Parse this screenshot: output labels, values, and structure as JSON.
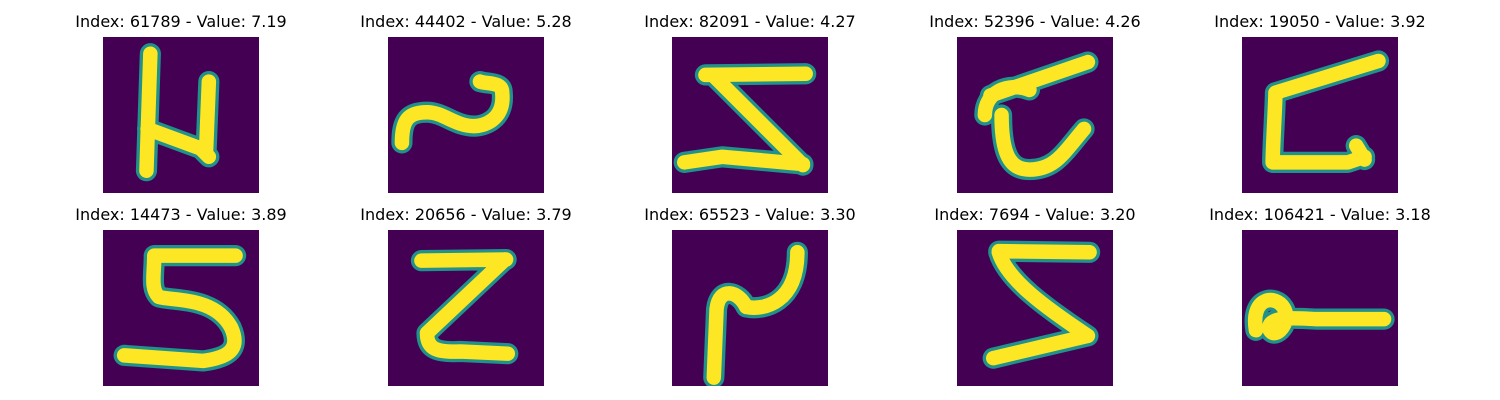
{
  "chart_data": {
    "type": "image-grid",
    "rows": 2,
    "cols": 5,
    "colors": {
      "background": "#440154",
      "mid": "#21918c",
      "high": "#fde725"
    },
    "panels": [
      {
        "index": 61789,
        "value": 7.19,
        "title": "Index: 61789 - Value: 7.19",
        "glyph": "N-shape stroke"
      },
      {
        "index": 44402,
        "value": 5.28,
        "title": "Index: 44402 - Value: 5.28",
        "glyph": "tilde stroke"
      },
      {
        "index": 82091,
        "value": 4.27,
        "title": "Index: 82091 - Value: 4.27",
        "glyph": "Z-shape stroke"
      },
      {
        "index": 52396,
        "value": 4.26,
        "title": "Index: 52396 - Value: 4.26",
        "glyph": "curved z stroke"
      },
      {
        "index": 19050,
        "value": 3.92,
        "title": "Index: 19050 - Value: 3.92",
        "glyph": "Z with curl stroke"
      },
      {
        "index": 14473,
        "value": 3.89,
        "title": "Index: 14473 - Value: 3.89",
        "glyph": "5/S stroke"
      },
      {
        "index": 20656,
        "value": 3.79,
        "title": "Index: 20656 - Value: 3.79",
        "glyph": "Z stroke"
      },
      {
        "index": 65523,
        "value": 3.3,
        "title": "Index: 65523 - Value: 3.30",
        "glyph": "mirrored N stroke"
      },
      {
        "index": 7694,
        "value": 3.2,
        "title": "Index: 7694 - Value: 3.20",
        "glyph": "Z/sigma stroke"
      },
      {
        "index": 106421,
        "value": 3.18,
        "title": "Index: 106421 - Value: 3.18",
        "glyph": "loop stroke"
      }
    ]
  }
}
